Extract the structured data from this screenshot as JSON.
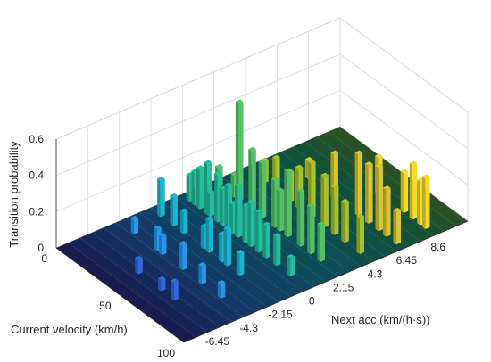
{
  "chart_data": {
    "type": "bar3d",
    "xlabel": "Current velocity (km/h)",
    "ylabel": "Next acc (km/(h·s))",
    "zlabel": "Transition probability",
    "x_ticks": [
      "0",
      "50",
      "100"
    ],
    "x_tick_values": [
      0,
      50,
      100
    ],
    "y_ticks": [
      "-6.45",
      "-4.3",
      "-2.15",
      "0",
      "2.15",
      "4.3",
      "6.45",
      "8.6"
    ],
    "y_tick_values": [
      -6.45,
      -4.3,
      -2.15,
      0,
      2.15,
      4.3,
      6.45,
      8.6
    ],
    "z_ticks": [
      "0",
      "0.2",
      "0.4",
      "0.6"
    ],
    "z_tick_values": [
      0,
      0.2,
      0.4,
      0.6
    ],
    "xlim": [
      0,
      100
    ],
    "ylim": [
      -8.6,
      10.75
    ],
    "zlim": [
      0,
      0.6
    ],
    "grid": true,
    "colormap": [
      "#3e26a8",
      "#2e87f7",
      "#18b6d3",
      "#28c282",
      "#a8c02c",
      "#f1c936",
      "#f9fb15"
    ],
    "series": [
      {
        "values": [
          [
            8,
            -2.15,
            0.2
          ],
          [
            6,
            0.0,
            0.14
          ],
          [
            10,
            0.0,
            0.18
          ],
          [
            4,
            2.15,
            0.1
          ],
          [
            12,
            -4.3,
            0.08
          ],
          [
            14,
            0.0,
            0.22
          ],
          [
            16,
            2.15,
            0.12
          ],
          [
            18,
            -2.15,
            0.16
          ],
          [
            20,
            0.0,
            0.28
          ],
          [
            20,
            2.15,
            0.54
          ],
          [
            22,
            0.0,
            0.13
          ],
          [
            24,
            4.3,
            0.18
          ],
          [
            26,
            -2.15,
            0.12
          ],
          [
            28,
            0.0,
            0.26
          ],
          [
            30,
            2.15,
            0.33
          ],
          [
            32,
            0.0,
            0.2
          ],
          [
            34,
            -4.3,
            0.1
          ],
          [
            36,
            0.0,
            0.24
          ],
          [
            38,
            2.15,
            0.3
          ],
          [
            40,
            0.0,
            0.16
          ],
          [
            42,
            4.3,
            0.22
          ],
          [
            44,
            0.0,
            0.28
          ],
          [
            46,
            -2.15,
            0.18
          ],
          [
            48,
            2.15,
            0.26
          ],
          [
            50,
            0.0,
            0.2
          ],
          [
            52,
            4.3,
            0.3
          ],
          [
            54,
            0.0,
            0.24
          ],
          [
            56,
            -2.15,
            0.15
          ],
          [
            58,
            2.15,
            0.36
          ],
          [
            60,
            0.0,
            0.22
          ],
          [
            62,
            4.3,
            0.28
          ],
          [
            64,
            6.45,
            0.34
          ],
          [
            66,
            0.0,
            0.18
          ],
          [
            68,
            2.15,
            0.3
          ],
          [
            70,
            4.3,
            0.26
          ],
          [
            72,
            6.45,
            0.32
          ],
          [
            74,
            0.0,
            0.16
          ],
          [
            76,
            2.15,
            0.26
          ],
          [
            78,
            4.3,
            0.22
          ],
          [
            80,
            6.45,
            0.35
          ],
          [
            82,
            8.6,
            0.3
          ],
          [
            84,
            2.15,
            0.2
          ],
          [
            86,
            6.45,
            0.26
          ],
          [
            88,
            8.6,
            0.24
          ],
          [
            90,
            4.3,
            0.2
          ],
          [
            92,
            8.6,
            0.28
          ],
          [
            94,
            6.45,
            0.18
          ],
          [
            30,
            -4.3,
            0.12
          ],
          [
            40,
            -6.45,
            0.08
          ],
          [
            50,
            -4.3,
            0.14
          ],
          [
            60,
            -2.15,
            0.2
          ],
          [
            70,
            -2.15,
            0.12
          ],
          [
            80,
            -4.3,
            0.08
          ],
          [
            45,
            6.45,
            0.24
          ],
          [
            55,
            8.6,
            0.2
          ],
          [
            35,
            4.3,
            0.16
          ],
          [
            25,
            6.45,
            0.1
          ],
          [
            65,
            -4.3,
            0.1
          ],
          [
            75,
            8.6,
            0.22
          ],
          [
            85,
            0.0,
            0.1
          ],
          [
            15,
            4.3,
            0.12
          ],
          [
            58,
            -6.45,
            0.06
          ],
          [
            68,
            -6.45,
            0.1
          ],
          [
            42,
            -2.15,
            0.12
          ],
          [
            52,
            2.15,
            0.22
          ]
        ]
      }
    ]
  }
}
